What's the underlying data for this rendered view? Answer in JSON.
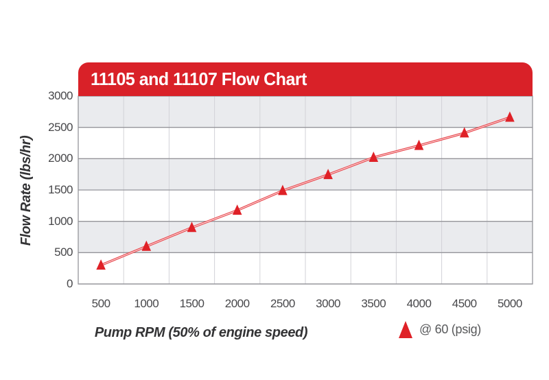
{
  "title_banner": {
    "text": "11105 and 11107 Flow Chart"
  },
  "colors": {
    "banner_red": "#d92128",
    "marker_red": "#df2127",
    "line_red": "#e8464c",
    "line_core_white": "#ffffff",
    "band_gray": "#eaebee",
    "grid_major": "#95959a",
    "grid_vertical": "#d2d2d7",
    "tick_text": "#47474a",
    "axis_title_text": "#333335",
    "legend_text": "#58595b"
  },
  "chart_data": {
    "type": "line",
    "title": "11105 and 11107 Flow Chart",
    "xlabel": "Pump RPM (50% of engine speed)",
    "ylabel": "Flow Rate (lbs/hr)",
    "x": [
      500,
      1000,
      1500,
      2000,
      2500,
      3000,
      3500,
      4000,
      4500,
      5000
    ],
    "x_tick_labels": [
      "500",
      "1000",
      "1500",
      "2000",
      "2500",
      "3000",
      "3500",
      "4000",
      "4500",
      "5000"
    ],
    "yticks": [
      0,
      500,
      1000,
      1500,
      2000,
      2500,
      3000
    ],
    "ytick_labels": [
      "0",
      "500",
      "1000",
      "1500",
      "2000",
      "2500",
      "3000"
    ],
    "ylim": [
      0,
      3000
    ],
    "series": [
      {
        "name": "@ 60 (psig)",
        "marker": "triangle",
        "values": [
          300,
          600,
          900,
          1175,
          1490,
          1745,
          2020,
          2210,
          2410,
          2660
        ]
      }
    ],
    "grid": "horizontal major lines + vertical category boundary lines",
    "plot_background": "alternating gray/white horizontal bands every 500 units (gray topmost)",
    "legend_position": "bottom-right below chart"
  },
  "legend": {
    "marker": "triangle-icon",
    "label": "@ 60 (psig)"
  }
}
